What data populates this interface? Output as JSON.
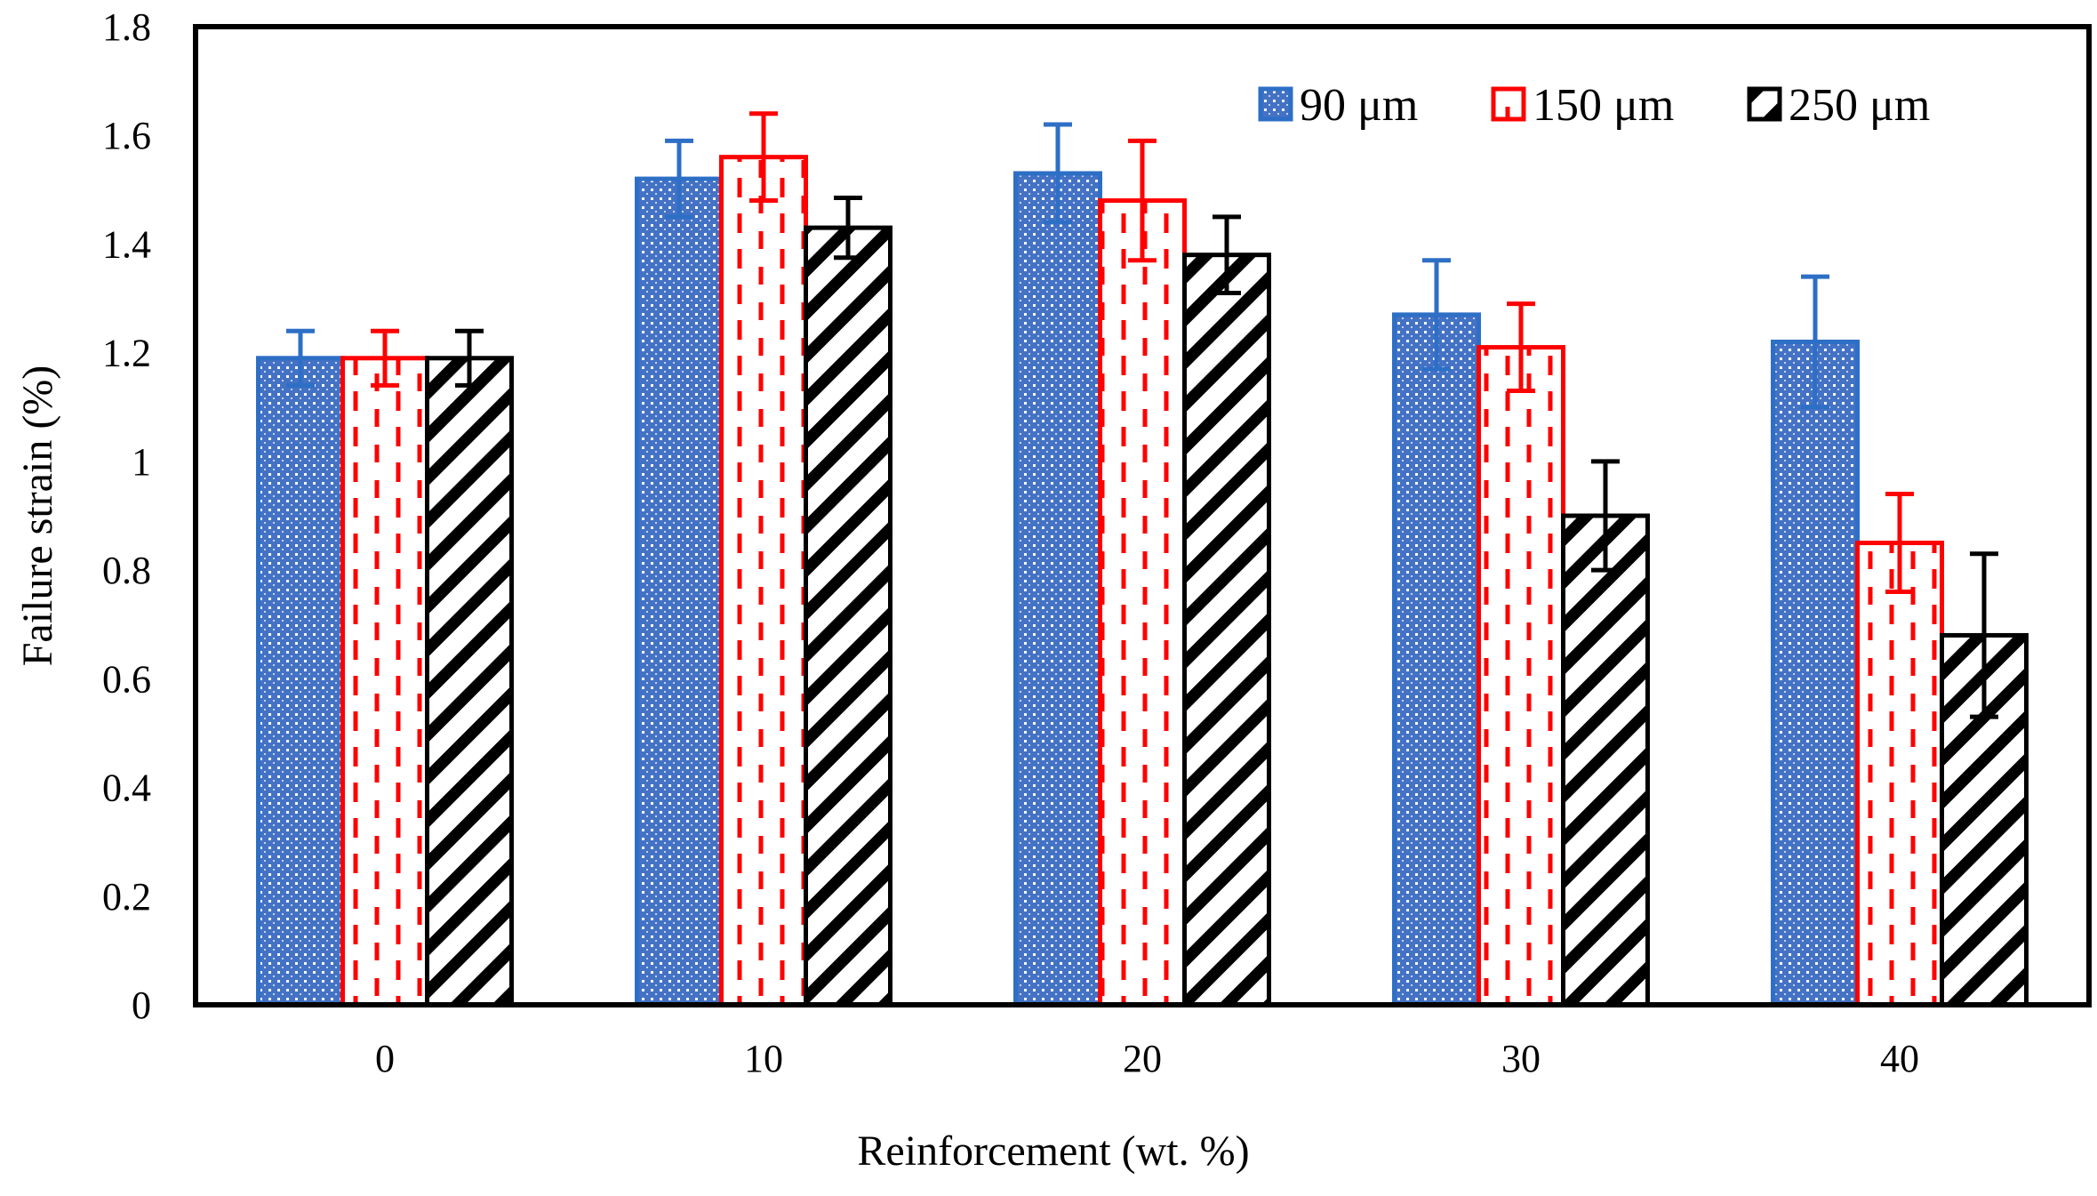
{
  "chart_data": {
    "type": "bar",
    "title": "",
    "xlabel": "Reinforcement  (wt. %)",
    "ylabel": "Failure strain (%)",
    "categories": [
      "0",
      "10",
      "20",
      "30",
      "40"
    ],
    "ylim": [
      0,
      1.8
    ],
    "yticks": [
      "0",
      "0.2",
      "0.4",
      "0.6",
      "0.8",
      "1",
      "1.2",
      "1.4",
      "1.6",
      "1.8"
    ],
    "grid": false,
    "legend_position": "top-right",
    "series": [
      {
        "name": "90 μm",
        "color": "#2e6fc6",
        "values": [
          1.19,
          1.52,
          1.53,
          1.27,
          1.22
        ],
        "errors": [
          0.05,
          0.07,
          0.09,
          0.1,
          0.12
        ]
      },
      {
        "name": "150 μm",
        "color": "#ff0000",
        "values": [
          1.19,
          1.56,
          1.48,
          1.21,
          0.85
        ],
        "errors": [
          0.05,
          0.08,
          0.11,
          0.08,
          0.09
        ]
      },
      {
        "name": "250 μm",
        "color": "#000000",
        "values": [
          1.19,
          1.43,
          1.38,
          0.9,
          0.68
        ],
        "errors": [
          0.05,
          0.055,
          0.07,
          0.1,
          0.15
        ]
      }
    ]
  }
}
